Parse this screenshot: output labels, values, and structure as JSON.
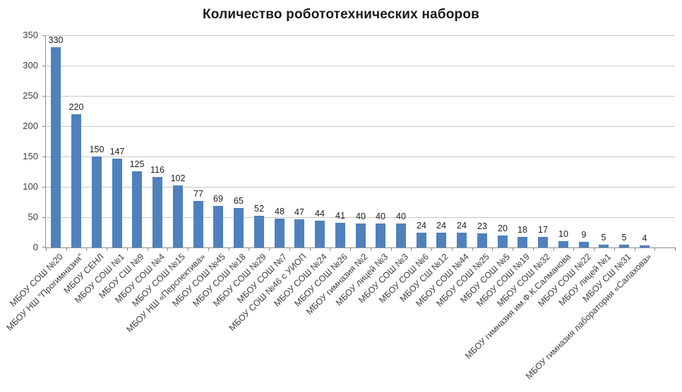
{
  "chart_data": {
    "type": "bar",
    "title": "Количество робототехнических наборов",
    "categories": [
      "МБОУ СОШ №20",
      "МБОУ НШ \"Прогимназия\"",
      "МБОУ СЕНЛ",
      "МБОУ СОШ №1",
      "МБОУ СШ №9",
      "МБОУ СОШ №4",
      "МБОУ СОШ №15",
      "МБОУ НШ «Перспектива»",
      "МБОУ СОШ №45",
      "МБОУ СОШ №18",
      "МБОУ СОШ №29",
      "МБОУ СОШ №7",
      "МБОУ СОШ №46 с УИОП",
      "МБОУ СОШ №24",
      "МБОУ СОШ №26",
      "МБОУ гимназия №2",
      "МБОУ лицей №3",
      "МБОУ СОШ №3",
      "МБОУ СОШ №6",
      "МБОУ СШ №12",
      "МБОУ СОШ №44",
      "МБОУ СОШ №25",
      "МБОУ СОШ №5",
      "МБОУ СОШ №19",
      "МБОУ СОШ №32",
      "МБОУ гимназия им.Ф.К.Салманова",
      "МБОУ СОШ №22",
      "МБОУ лицей №1",
      "МБОУ СШ №31",
      "МБОУ гимназия лаборатория «Салахова»"
    ],
    "values": [
      330,
      220,
      150,
      147,
      125,
      116,
      102,
      77,
      69,
      65,
      52,
      48,
      47,
      44,
      41,
      40,
      40,
      40,
      24,
      24,
      24,
      23,
      20,
      18,
      17,
      10,
      9,
      5,
      5,
      4
    ],
    "data_labels": true,
    "xlabel": "",
    "ylabel": "",
    "ylim": [
      0,
      350
    ],
    "yticks": [
      0,
      50,
      100,
      150,
      200,
      250,
      300,
      350
    ],
    "grid": true,
    "legend_position": "none",
    "bar_color": "#4F81BD",
    "gridline_color": "#c6c6c6",
    "axis_color": "#8c8c8c",
    "label_color": "#404040",
    "value_label_color": "#1f1f1f",
    "title_color": "#1a1a1a"
  }
}
